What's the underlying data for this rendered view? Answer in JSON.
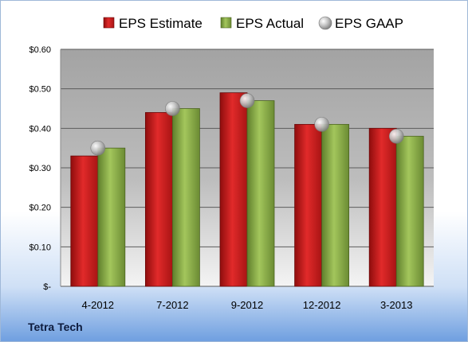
{
  "company": "Tetra Tech",
  "chart_data": {
    "type": "bar",
    "categories": [
      "4-2012",
      "7-2012",
      "9-2012",
      "12-2012",
      "3-2013"
    ],
    "series": [
      {
        "name": "EPS Estimate",
        "kind": "bar",
        "color": "#c81f1f",
        "values": [
          0.33,
          0.44,
          0.49,
          0.41,
          0.4
        ]
      },
      {
        "name": "EPS Actual",
        "kind": "bar",
        "color": "#8db049",
        "values": [
          0.35,
          0.45,
          0.47,
          0.41,
          0.38
        ]
      },
      {
        "name": "EPS GAAP",
        "kind": "marker",
        "color": "#b8b8b8",
        "values": [
          0.35,
          0.45,
          0.47,
          0.41,
          0.38
        ]
      }
    ],
    "yticks": [
      0,
      0.1,
      0.2,
      0.3,
      0.4,
      0.5,
      0.6
    ],
    "ytick_labels": [
      "$-",
      "$0.10",
      "$0.20",
      "$0.30",
      "$0.40",
      "$0.50",
      "$0.60"
    ],
    "ylim": [
      0,
      0.6
    ],
    "grid": true,
    "legend_position": "top"
  }
}
